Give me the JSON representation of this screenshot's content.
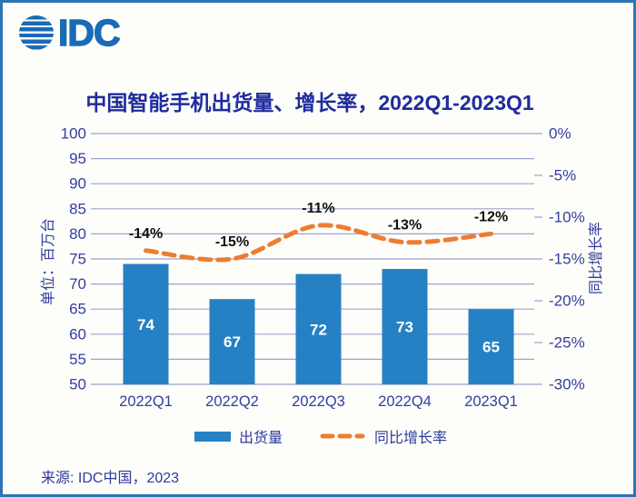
{
  "frame": {
    "border_color": "#2e75b6",
    "background": "#fdfdfa"
  },
  "logo": {
    "text": "IDC",
    "color": "#1a6bb5",
    "icon": "striped-globe-icon"
  },
  "footer": {
    "source": "来源: IDC中国，2023"
  },
  "chart_data": {
    "type": "bar",
    "title": "中国智能手机出货量、增长率，2022Q1-2023Q1",
    "categories": [
      "2022Q1",
      "2022Q2",
      "2022Q3",
      "2022Q4",
      "2023Q1"
    ],
    "series": [
      {
        "name": "出货量",
        "type": "bar",
        "axis": "left",
        "color": "#2581c4",
        "values": [
          74,
          67,
          72,
          73,
          65
        ],
        "data_labels": [
          "74",
          "67",
          "72",
          "73",
          "65"
        ]
      },
      {
        "name": "同比增长率",
        "type": "line",
        "axis": "right",
        "dashed": true,
        "smoothed": true,
        "color": "#ed7d31",
        "values": [
          -14,
          -15,
          -11,
          -13,
          -12
        ],
        "data_labels": [
          "-14%",
          "-15%",
          "-11%",
          "-13%",
          "-12%"
        ]
      }
    ],
    "left_axis": {
      "title": "单位：百万台",
      "min": 50,
      "max": 100,
      "step": 5,
      "tick_labels": [
        "100",
        "95",
        "90",
        "85",
        "80",
        "75",
        "70",
        "65",
        "60",
        "55",
        "50"
      ]
    },
    "right_axis": {
      "title": "同比增长率",
      "min": -30,
      "max": 0,
      "step": 5,
      "tick_labels": [
        "0%",
        "-5%",
        "-10%",
        "-15%",
        "-20%",
        "-25%",
        "-30%"
      ]
    },
    "grid": true,
    "legend_position": "bottom",
    "colors": {
      "grid": "#9aa3cf",
      "axis_text": "#343e9f",
      "title": "#1f2b9e",
      "bar_data_label": "#ffffff",
      "line_data_label": "#111111"
    }
  }
}
